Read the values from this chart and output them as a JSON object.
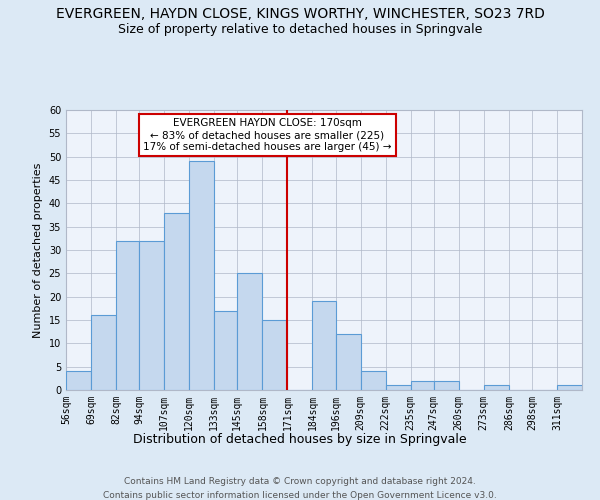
{
  "title": "EVERGREEN, HAYDN CLOSE, KINGS WORTHY, WINCHESTER, SO23 7RD",
  "subtitle": "Size of property relative to detached houses in Springvale",
  "xlabel": "Distribution of detached houses by size in Springvale",
  "ylabel": "Number of detached properties",
  "bin_labels": [
    "56sqm",
    "69sqm",
    "82sqm",
    "94sqm",
    "107sqm",
    "120sqm",
    "133sqm",
    "145sqm",
    "158sqm",
    "171sqm",
    "184sqm",
    "196sqm",
    "209sqm",
    "222sqm",
    "235sqm",
    "247sqm",
    "260sqm",
    "273sqm",
    "286sqm",
    "298sqm",
    "311sqm"
  ],
  "bin_edges": [
    56,
    69,
    82,
    94,
    107,
    120,
    133,
    145,
    158,
    171,
    184,
    196,
    209,
    222,
    235,
    247,
    260,
    273,
    286,
    298,
    311
  ],
  "counts": [
    4,
    16,
    32,
    32,
    38,
    49,
    17,
    25,
    15,
    0,
    19,
    12,
    4,
    1,
    2,
    2,
    0,
    1,
    0,
    0,
    1
  ],
  "bar_color": "#c5d8ee",
  "bar_edge_color": "#5b9bd5",
  "vline_x": 171,
  "vline_color": "#cc0000",
  "annotation_title": "EVERGREEN HAYDN CLOSE: 170sqm",
  "annotation_line1": "← 83% of detached houses are smaller (225)",
  "annotation_line2": "17% of semi-detached houses are larger (45) →",
  "annotation_box_color": "#ffffff",
  "annotation_box_edge": "#cc0000",
  "ylim": [
    0,
    60
  ],
  "yticks": [
    0,
    5,
    10,
    15,
    20,
    25,
    30,
    35,
    40,
    45,
    50,
    55,
    60
  ],
  "background_color": "#dce9f5",
  "plot_bg_color": "#eef3fb",
  "footer_line1": "Contains HM Land Registry data © Crown copyright and database right 2024.",
  "footer_line2": "Contains public sector information licensed under the Open Government Licence v3.0.",
  "title_fontsize": 10,
  "subtitle_fontsize": 9,
  "xlabel_fontsize": 9,
  "ylabel_fontsize": 8,
  "tick_fontsize": 7,
  "annotation_fontsize": 7.5,
  "footer_fontsize": 6.5
}
